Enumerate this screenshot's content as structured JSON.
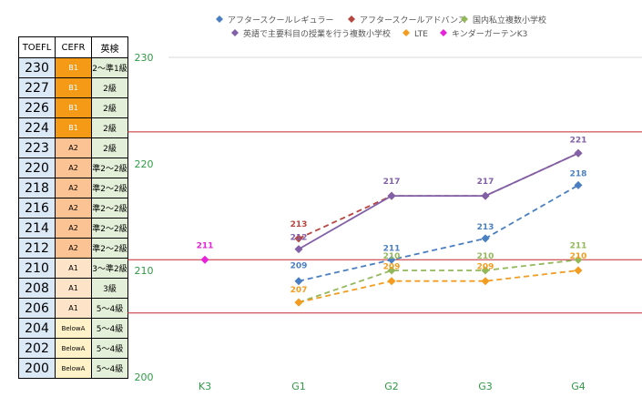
{
  "table": {
    "headers": [
      "TOEFL",
      "CEFR",
      "英検"
    ],
    "rows": [
      {
        "toefl": "230",
        "cefr": "B1",
        "eiken": "2〜準1級",
        "level": "b1"
      },
      {
        "toefl": "227",
        "cefr": "B1",
        "eiken": "2級",
        "level": "b1"
      },
      {
        "toefl": "226",
        "cefr": "B1",
        "eiken": "2級",
        "level": "b1"
      },
      {
        "toefl": "224",
        "cefr": "B1",
        "eiken": "2級",
        "level": "b1"
      },
      {
        "toefl": "223",
        "cefr": "A2",
        "eiken": "2級",
        "level": "a2"
      },
      {
        "toefl": "220",
        "cefr": "A2",
        "eiken": "準2〜2級",
        "level": "a2"
      },
      {
        "toefl": "218",
        "cefr": "A2",
        "eiken": "準2〜2級",
        "level": "a2"
      },
      {
        "toefl": "216",
        "cefr": "A2",
        "eiken": "準2〜2級",
        "level": "a2"
      },
      {
        "toefl": "214",
        "cefr": "A2",
        "eiken": "準2〜2級",
        "level": "a2"
      },
      {
        "toefl": "212",
        "cefr": "A2",
        "eiken": "準2〜2級",
        "level": "a2"
      },
      {
        "toefl": "210",
        "cefr": "A1",
        "eiken": "3〜準2級",
        "level": "a1"
      },
      {
        "toefl": "208",
        "cefr": "A1",
        "eiken": "3級",
        "level": "a1"
      },
      {
        "toefl": "206",
        "cefr": "A1",
        "eiken": "5〜4級",
        "level": "a1"
      },
      {
        "toefl": "204",
        "cefr": "BelowA",
        "eiken": "5〜4級",
        "level": "belowa"
      },
      {
        "toefl": "202",
        "cefr": "BelowA",
        "eiken": "5〜4級",
        "level": "belowa"
      },
      {
        "toefl": "200",
        "cefr": "BelowA",
        "eiken": "5〜4級",
        "level": "belowa"
      }
    ]
  },
  "chart_data": {
    "type": "line",
    "categories": [
      "K3",
      "G1",
      "G2",
      "G3",
      "G4"
    ],
    "ylim": [
      200,
      230
    ],
    "yticks": [
      200,
      210,
      220,
      230
    ],
    "gridlines": [
      230
    ],
    "reference_lines": [
      206,
      211,
      223
    ],
    "grid": true,
    "legend_position": "top",
    "series": [
      {
        "name": "アフタースクールレギュラー",
        "color": "#4a7fc1",
        "marker": "diamond",
        "dashed": true,
        "values": [
          null,
          209,
          211,
          213,
          218
        ],
        "labels": [
          null,
          "209",
          "211",
          "213",
          "218"
        ]
      },
      {
        "name": "アフタースクールアドバンス",
        "color": "#b8453f",
        "marker": "diamond",
        "dashed": true,
        "values": [
          null,
          213,
          217,
          217,
          221
        ],
        "labels": [
          null,
          "213",
          null,
          null,
          null
        ]
      },
      {
        "name": "国内私立複数小学校",
        "color": "#93b85a",
        "marker": "diamond",
        "dashed": true,
        "values": [
          null,
          207,
          210,
          210,
          211
        ],
        "labels": [
          null,
          null,
          "210",
          "210",
          "211"
        ]
      },
      {
        "name": "英語で主要科目の授業を行う複数小学校",
        "color": "#8160a8",
        "marker": "diamond",
        "dashed": false,
        "values": [
          null,
          212,
          217,
          217,
          221
        ],
        "labels": [
          null,
          "212",
          "217",
          "217",
          "221"
        ]
      },
      {
        "name": "LTE",
        "color": "#f39c1f",
        "marker": "diamond",
        "dashed": true,
        "values": [
          null,
          207,
          209,
          209,
          210
        ],
        "labels": [
          null,
          "207",
          "209",
          "209",
          "210"
        ]
      },
      {
        "name": "キンダーガーテンK3",
        "color": "#e623d8",
        "marker": "diamond",
        "dashed": false,
        "values": [
          211,
          null,
          null,
          null,
          null
        ],
        "labels": [
          "211",
          null,
          null,
          null,
          null
        ]
      }
    ]
  }
}
